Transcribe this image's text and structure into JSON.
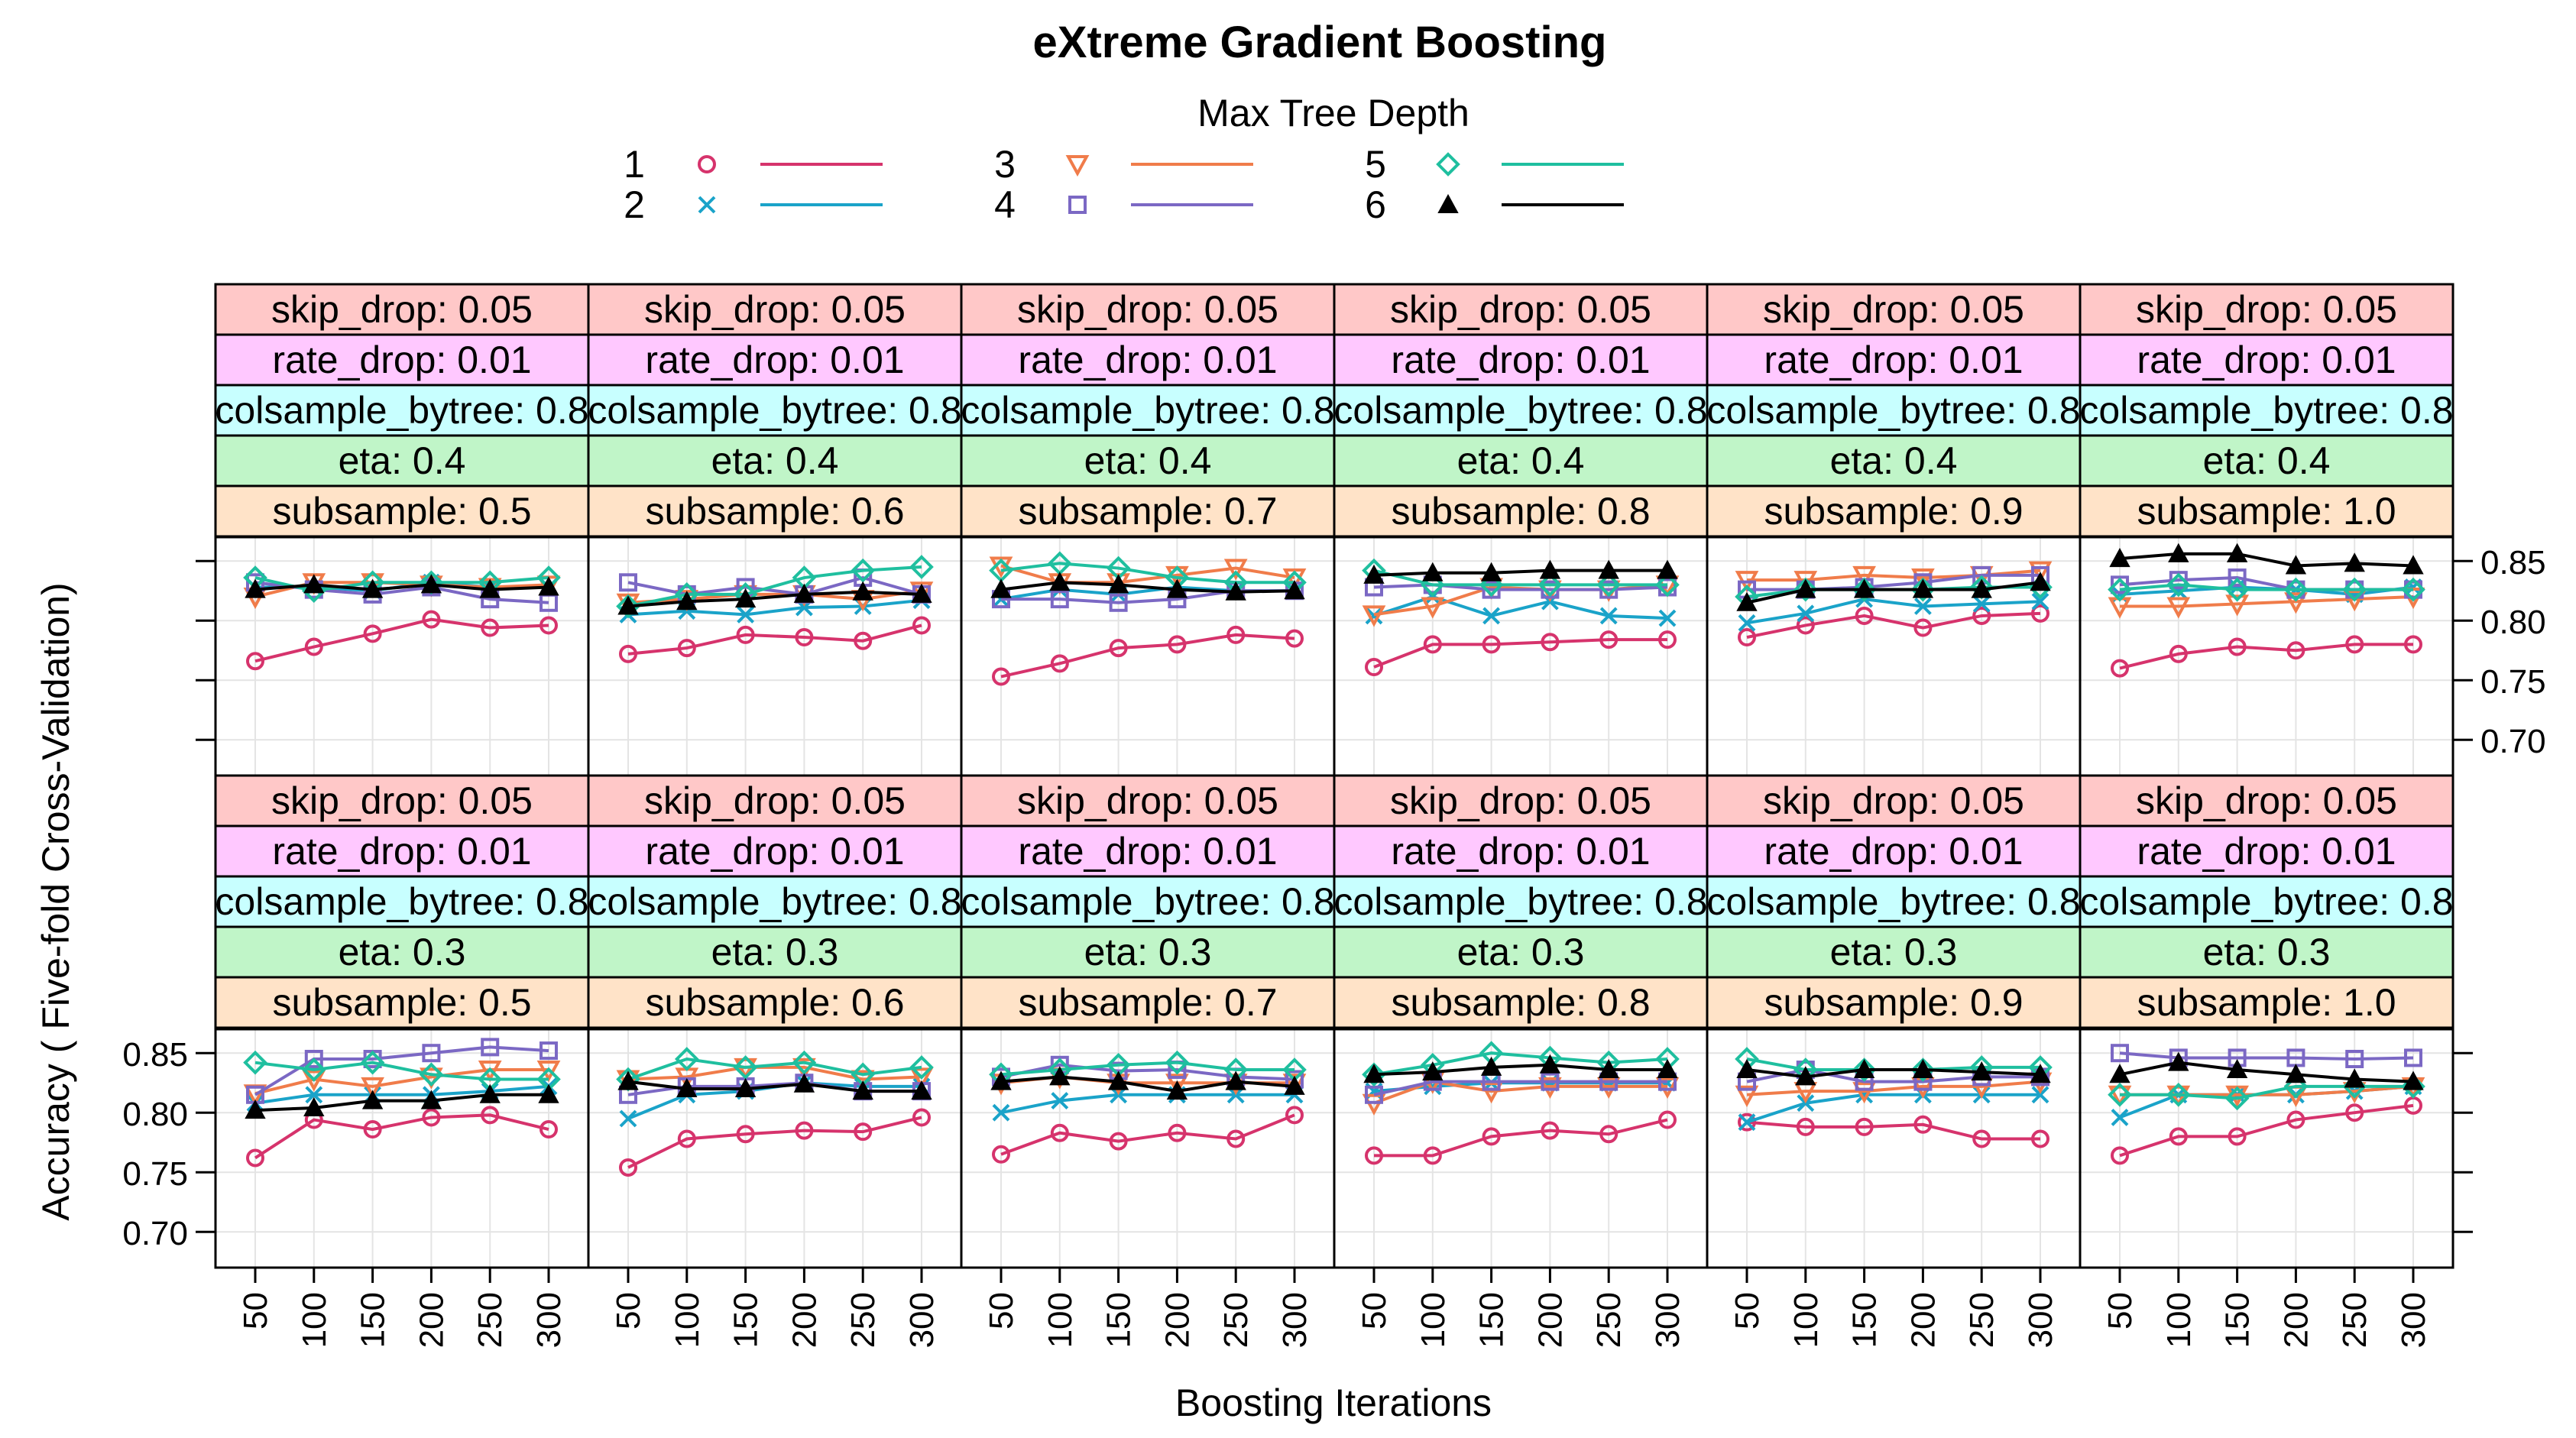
{
  "chart_data": {
    "type": "line",
    "title": "eXtreme Gradient Boosting",
    "xlabel": "Boosting Iterations",
    "ylabel": "Accuracy ( Five-fold Cross-Validation)",
    "x": [
      50,
      100,
      150,
      200,
      250,
      300
    ],
    "x_tick_labels": [
      "50",
      "100",
      "150",
      "200",
      "250",
      "300"
    ],
    "ylim": [
      0.67,
      0.87
    ],
    "y_ticks": [
      0.7,
      0.75,
      0.8,
      0.85
    ],
    "y_tick_labels": [
      "0.70",
      "0.75",
      "0.80",
      "0.85"
    ],
    "legend": {
      "title": "Max Tree Depth",
      "entries": [
        {
          "label": "1",
          "color": "#d6336c",
          "symbol": "circle"
        },
        {
          "label": "2",
          "color": "#1aa3c9",
          "symbol": "cross"
        },
        {
          "label": "3",
          "color": "#f07c4a",
          "symbol": "triangle-down"
        },
        {
          "label": "4",
          "color": "#7b68c4",
          "symbol": "square"
        },
        {
          "label": "5",
          "color": "#1fbf9f",
          "symbol": "diamond"
        },
        {
          "label": "6",
          "color": "#000000",
          "symbol": "triangle-up"
        }
      ]
    },
    "strip_colors": [
      "#ffc8c8",
      "#ffc8ff",
      "#c8ffff",
      "#c0f5c8",
      "#ffe3c8"
    ],
    "rows": [
      {
        "strips": [
          "skip_drop: 0.05",
          "rate_drop: 0.01",
          "colsample_bytree: 0.8",
          "eta: 0.4"
        ],
        "panels": [
          {
            "subsample": "subsample: 0.5",
            "series": [
              [
                0.766,
                0.778,
                0.789,
                0.801,
                0.794,
                0.796
              ],
              [
                0.828,
                0.828,
                0.825,
                0.832,
                0.828,
                0.828
              ],
              [
                0.82,
                0.832,
                0.832,
                0.83,
                0.828,
                0.83
              ],
              [
                0.832,
                0.826,
                0.822,
                0.828,
                0.818,
                0.815
              ],
              [
                0.836,
                0.825,
                0.832,
                0.832,
                0.832,
                0.836
              ],
              [
                0.826,
                0.83,
                0.826,
                0.83,
                0.826,
                0.828
              ]
            ]
          },
          {
            "subsample": "subsample: 0.6",
            "series": [
              [
                0.772,
                0.777,
                0.788,
                0.786,
                0.783,
                0.796
              ],
              [
                0.805,
                0.808,
                0.805,
                0.811,
                0.812,
                0.817
              ],
              [
                0.815,
                0.818,
                0.822,
                0.822,
                0.818,
                0.825
              ],
              [
                0.832,
                0.822,
                0.828,
                0.822,
                0.836,
                0.822
              ],
              [
                0.812,
                0.822,
                0.822,
                0.836,
                0.842,
                0.845
              ],
              [
                0.812,
                0.816,
                0.818,
                0.822,
                0.824,
                0.822
              ]
            ]
          },
          {
            "subsample": "subsample: 0.7",
            "series": [
              [
                0.753,
                0.764,
                0.777,
                0.78,
                0.788,
                0.785
              ],
              [
                0.818,
                0.826,
                0.822,
                0.828,
                0.825,
                0.825
              ],
              [
                0.846,
                0.832,
                0.832,
                0.838,
                0.844,
                0.836
              ],
              [
                0.818,
                0.818,
                0.815,
                0.818,
                0.825,
                0.825
              ],
              [
                0.842,
                0.848,
                0.844,
                0.836,
                0.832,
                0.832
              ],
              [
                0.826,
                0.832,
                0.83,
                0.826,
                0.824,
                0.825
              ]
            ]
          },
          {
            "subsample": "subsample: 0.8",
            "series": [
              [
                0.761,
                0.78,
                0.78,
                0.782,
                0.784,
                0.784
              ],
              [
                0.804,
                0.82,
                0.804,
                0.816,
                0.804,
                0.802
              ],
              [
                0.805,
                0.812,
                0.828,
                0.826,
                0.826,
                0.83
              ],
              [
                0.828,
                0.83,
                0.826,
                0.826,
                0.826,
                0.828
              ],
              [
                0.842,
                0.83,
                0.83,
                0.83,
                0.83,
                0.83
              ],
              [
                0.838,
                0.84,
                0.84,
                0.842,
                0.842,
                0.842
              ]
            ]
          },
          {
            "subsample": "subsample: 0.9",
            "series": [
              [
                0.786,
                0.796,
                0.804,
                0.794,
                0.804,
                0.806
              ],
              [
                0.798,
                0.806,
                0.818,
                0.812,
                0.814,
                0.816
              ],
              [
                0.834,
                0.834,
                0.838,
                0.836,
                0.838,
                0.842
              ],
              [
                0.826,
                0.826,
                0.828,
                0.832,
                0.838,
                0.838
              ],
              [
                0.82,
                0.826,
                0.826,
                0.826,
                0.828,
                0.828
              ],
              [
                0.815,
                0.826,
                0.826,
                0.826,
                0.826,
                0.832
              ]
            ]
          },
          {
            "subsample": "subsample: 1.0",
            "series": [
              [
                0.76,
                0.772,
                0.778,
                0.775,
                0.78,
                0.78
              ],
              [
                0.822,
                0.825,
                0.828,
                0.826,
                0.822,
                0.828
              ],
              [
                0.812,
                0.812,
                0.814,
                0.816,
                0.818,
                0.82
              ],
              [
                0.83,
                0.834,
                0.836,
                0.826,
                0.826,
                0.826
              ],
              [
                0.826,
                0.83,
                0.826,
                0.826,
                0.826,
                0.826
              ],
              [
                0.852,
                0.856,
                0.856,
                0.846,
                0.848,
                0.846
              ]
            ]
          }
        ]
      },
      {
        "strips": [
          "skip_drop: 0.05",
          "rate_drop: 0.01",
          "colsample_bytree: 0.8",
          "eta: 0.3"
        ],
        "panels": [
          {
            "subsample": "subsample: 0.5",
            "series": [
              [
                0.762,
                0.794,
                0.786,
                0.796,
                0.798,
                0.786
              ],
              [
                0.808,
                0.815,
                0.815,
                0.815,
                0.818,
                0.822
              ],
              [
                0.816,
                0.828,
                0.822,
                0.83,
                0.836,
                0.836
              ],
              [
                0.815,
                0.845,
                0.845,
                0.85,
                0.855,
                0.852
              ],
              [
                0.842,
                0.836,
                0.842,
                0.832,
                0.828,
                0.828
              ],
              [
                0.802,
                0.804,
                0.81,
                0.81,
                0.815,
                0.815
              ]
            ]
          },
          {
            "subsample": "subsample: 0.6",
            "series": [
              [
                0.754,
                0.778,
                0.782,
                0.785,
                0.784,
                0.796
              ],
              [
                0.795,
                0.815,
                0.818,
                0.825,
                0.822,
                0.822
              ],
              [
                0.828,
                0.83,
                0.838,
                0.838,
                0.828,
                0.83
              ],
              [
                0.815,
                0.822,
                0.822,
                0.825,
                0.818,
                0.818
              ],
              [
                0.828,
                0.845,
                0.838,
                0.842,
                0.832,
                0.838
              ],
              [
                0.826,
                0.82,
                0.82,
                0.824,
                0.818,
                0.818
              ]
            ]
          },
          {
            "subsample": "subsample: 0.7",
            "series": [
              [
                0.765,
                0.783,
                0.776,
                0.783,
                0.778,
                0.798
              ],
              [
                0.8,
                0.81,
                0.815,
                0.815,
                0.815,
                0.815
              ],
              [
                0.825,
                0.83,
                0.825,
                0.825,
                0.825,
                0.825
              ],
              [
                0.83,
                0.84,
                0.835,
                0.836,
                0.83,
                0.828
              ],
              [
                0.832,
                0.836,
                0.84,
                0.842,
                0.836,
                0.836
              ],
              [
                0.826,
                0.83,
                0.826,
                0.818,
                0.826,
                0.822
              ]
            ]
          },
          {
            "subsample": "subsample: 0.8",
            "series": [
              [
                0.764,
                0.764,
                0.78,
                0.785,
                0.782,
                0.794
              ],
              [
                0.818,
                0.822,
                0.825,
                0.825,
                0.825,
                0.825
              ],
              [
                0.808,
                0.826,
                0.818,
                0.822,
                0.822,
                0.822
              ],
              [
                0.815,
                0.826,
                0.826,
                0.826,
                0.826,
                0.826
              ],
              [
                0.832,
                0.84,
                0.85,
                0.846,
                0.842,
                0.845
              ],
              [
                0.832,
                0.834,
                0.838,
                0.84,
                0.836,
                0.836
              ]
            ]
          },
          {
            "subsample": "subsample: 0.9",
            "series": [
              [
                0.792,
                0.788,
                0.788,
                0.79,
                0.778,
                0.778
              ],
              [
                0.792,
                0.808,
                0.815,
                0.815,
                0.815,
                0.815
              ],
              [
                0.815,
                0.818,
                0.818,
                0.822,
                0.822,
                0.826
              ],
              [
                0.826,
                0.836,
                0.826,
                0.826,
                0.83,
                0.83
              ],
              [
                0.845,
                0.836,
                0.836,
                0.836,
                0.838,
                0.838
              ],
              [
                0.836,
                0.83,
                0.836,
                0.836,
                0.834,
                0.832
              ]
            ]
          },
          {
            "subsample": "subsample: 1.0",
            "series": [
              [
                0.764,
                0.78,
                0.78,
                0.794,
                0.8,
                0.806
              ],
              [
                0.796,
                0.815,
                0.815,
                0.815,
                0.818,
                0.822
              ],
              [
                0.815,
                0.815,
                0.815,
                0.815,
                0.818,
                0.822
              ],
              [
                0.85,
                0.846,
                0.846,
                0.846,
                0.845,
                0.846
              ],
              [
                0.815,
                0.815,
                0.812,
                0.822,
                0.822,
                0.822
              ],
              [
                0.832,
                0.842,
                0.836,
                0.832,
                0.828,
                0.826
              ]
            ]
          }
        ]
      }
    ]
  }
}
